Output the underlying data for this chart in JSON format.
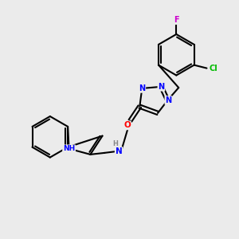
{
  "bg_color": "#ebebeb",
  "bond_color": "#000000",
  "bond_width": 1.5,
  "atom_colors": {
    "N": "#0000ff",
    "O": "#ff0000",
    "Cl": "#00bb00",
    "F": "#cc00cc",
    "H": "#888888",
    "C": "#000000"
  },
  "font_size": 7.5,
  "figure_size": [
    3.0,
    3.0
  ],
  "dpi": 100
}
